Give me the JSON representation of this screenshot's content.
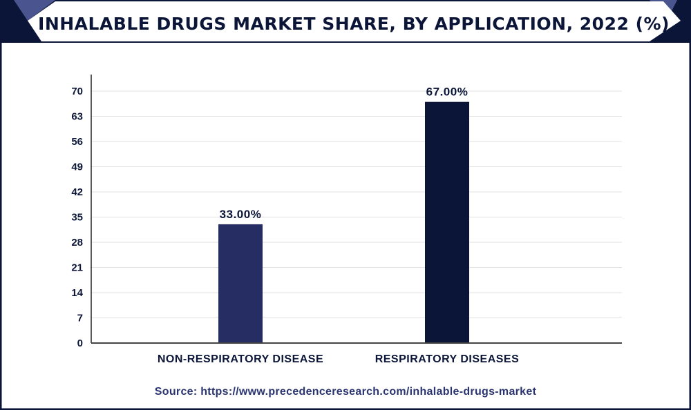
{
  "chart_data": {
    "type": "bar",
    "title": "INHALABLE DRUGS MARKET SHARE, BY APPLICATION, 2022 (%)",
    "categories": [
      "NON-RESPIRATORY DISEASE",
      "RESPIRATORY DISEASES"
    ],
    "values": [
      33,
      67
    ],
    "data_labels": [
      "33.00%",
      "67.00%"
    ],
    "ylim": [
      0,
      70
    ],
    "yticks": [
      0,
      7,
      14,
      21,
      28,
      35,
      42,
      49,
      56,
      63,
      70
    ],
    "grid": true,
    "bar_colors": [
      "#252d63",
      "#0b1538"
    ],
    "xlabel": "",
    "ylabel": ""
  },
  "source": "Source: https://www.precedenceresearch.com/inhalable-drugs-market",
  "colors": {
    "frame": "#0b1538",
    "accent": "#4a5590"
  }
}
